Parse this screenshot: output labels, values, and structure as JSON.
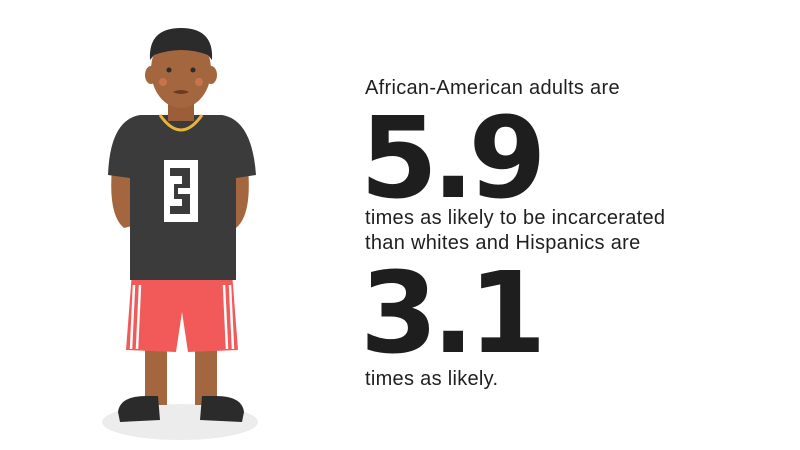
{
  "header": {
    "intro": "African-American adults are"
  },
  "stats": [
    {
      "number": "5.9",
      "lines": [
        "times as likely to be incarcerated",
        "than whites and Hispanics are"
      ]
    },
    {
      "number": "3.1",
      "lines": [
        "times as likely."
      ]
    }
  ]
}
